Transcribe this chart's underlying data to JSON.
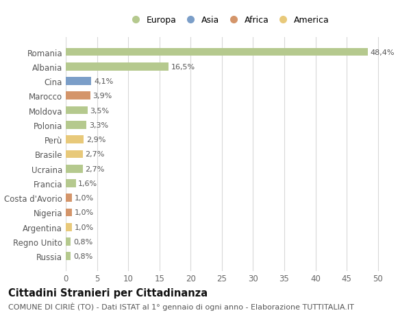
{
  "title": "Cittadini Stranieri per Cittadinanza",
  "subtitle": "COMUNE DI CIRIÈ (TO) - Dati ISTAT al 1° gennaio di ogni anno - Elaborazione TUTTITALIA.IT",
  "categories": [
    "Romania",
    "Albania",
    "Cina",
    "Marocco",
    "Moldova",
    "Polonia",
    "Perù",
    "Brasile",
    "Ucraina",
    "Francia",
    "Costa d'Avorio",
    "Nigeria",
    "Argentina",
    "Regno Unito",
    "Russia"
  ],
  "values": [
    48.4,
    16.5,
    4.1,
    3.9,
    3.5,
    3.3,
    2.9,
    2.7,
    2.7,
    1.6,
    1.0,
    1.0,
    1.0,
    0.8,
    0.8
  ],
  "colors": [
    "#b5c98e",
    "#b5c98e",
    "#7b9ec8",
    "#d4956a",
    "#b5c98e",
    "#b5c98e",
    "#e8c97a",
    "#e8c97a",
    "#b5c98e",
    "#b5c98e",
    "#d4956a",
    "#d4956a",
    "#e8c97a",
    "#b5c98e",
    "#b5c98e"
  ],
  "labels": [
    "48,4%",
    "16,5%",
    "4,1%",
    "3,9%",
    "3,5%",
    "3,3%",
    "2,9%",
    "2,7%",
    "2,7%",
    "1,6%",
    "1,0%",
    "1,0%",
    "1,0%",
    "0,8%",
    "0,8%"
  ],
  "legend_labels": [
    "Europa",
    "Asia",
    "Africa",
    "America"
  ],
  "legend_colors": [
    "#b5c98e",
    "#7b9ec8",
    "#d4956a",
    "#e8c97a"
  ],
  "xlim": [
    0,
    52
  ],
  "xticks": [
    0,
    5,
    10,
    15,
    20,
    25,
    30,
    35,
    40,
    45,
    50
  ],
  "background_color": "#ffffff",
  "grid_color": "#d8d8d8",
  "bar_height": 0.55,
  "title_fontsize": 10.5,
  "subtitle_fontsize": 8,
  "tick_fontsize": 8.5,
  "label_fontsize": 8
}
